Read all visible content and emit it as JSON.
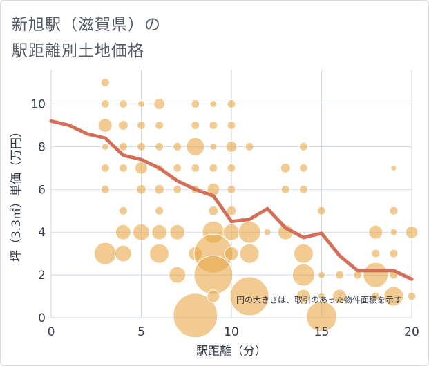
{
  "title_line1": "新旭駅（滋賀県）の",
  "title_line2": "駅距離別土地価格",
  "chart_data": {
    "type": "scatter",
    "xlabel": "駅距離（分）",
    "ylabel": "坪（3.3㎡）単価（万円）",
    "xlim": [
      0,
      20
    ],
    "ylim": [
      0,
      11.6
    ],
    "xticks": [
      0,
      5,
      10,
      15,
      20
    ],
    "yticks": [
      0,
      2,
      4,
      6,
      8,
      10
    ],
    "note": "円の大きさは、取引のあった物件面積を示す",
    "bubble_color": "#e8a94a",
    "line_color": "#d4705a",
    "trend_line": {
      "x": [
        0,
        1,
        2,
        3,
        4,
        5,
        6,
        7,
        8,
        9,
        10,
        11,
        12,
        13,
        14,
        15,
        16,
        17,
        18,
        19,
        20
      ],
      "y": [
        9.2,
        9.0,
        8.6,
        8.4,
        7.6,
        7.4,
        7.0,
        6.4,
        6.0,
        5.7,
        4.5,
        4.6,
        5.1,
        4.2,
        3.75,
        3.95,
        2.9,
        2.2,
        2.2,
        2.2,
        1.8
      ]
    },
    "bubbles": [
      {
        "x": 3,
        "y": 11,
        "s": 6
      },
      {
        "x": 3,
        "y": 10,
        "s": 6
      },
      {
        "x": 3,
        "y": 9,
        "s": 10
      },
      {
        "x": 3,
        "y": 8,
        "s": 5
      },
      {
        "x": 3,
        "y": 7,
        "s": 6
      },
      {
        "x": 3,
        "y": 6,
        "s": 6
      },
      {
        "x": 3,
        "y": 3,
        "s": 16
      },
      {
        "x": 4,
        "y": 10,
        "s": 6
      },
      {
        "x": 4,
        "y": 9,
        "s": 7
      },
      {
        "x": 4,
        "y": 8,
        "s": 6
      },
      {
        "x": 4,
        "y": 7,
        "s": 6
      },
      {
        "x": 4,
        "y": 5,
        "s": 6
      },
      {
        "x": 4,
        "y": 4,
        "s": 11
      },
      {
        "x": 4,
        "y": 3,
        "s": 12
      },
      {
        "x": 5,
        "y": 10,
        "s": 5
      },
      {
        "x": 5,
        "y": 9,
        "s": 6
      },
      {
        "x": 5,
        "y": 8,
        "s": 6
      },
      {
        "x": 5,
        "y": 7,
        "s": 9
      },
      {
        "x": 5,
        "y": 6,
        "s": 7
      },
      {
        "x": 5,
        "y": 4,
        "s": 12
      },
      {
        "x": 6,
        "y": 10,
        "s": 8
      },
      {
        "x": 6,
        "y": 9,
        "s": 6
      },
      {
        "x": 6,
        "y": 8,
        "s": 6
      },
      {
        "x": 6,
        "y": 7,
        "s": 5
      },
      {
        "x": 6,
        "y": 6,
        "s": 7
      },
      {
        "x": 6,
        "y": 5,
        "s": 6
      },
      {
        "x": 6,
        "y": 4,
        "s": 11
      },
      {
        "x": 6,
        "y": 3,
        "s": 14
      },
      {
        "x": 7,
        "y": 8,
        "s": 6
      },
      {
        "x": 7,
        "y": 7,
        "s": 6
      },
      {
        "x": 7,
        "y": 6,
        "s": 6
      },
      {
        "x": 7,
        "y": 4,
        "s": 11
      },
      {
        "x": 7,
        "y": 2,
        "s": 12
      },
      {
        "x": 8,
        "y": 10,
        "s": 6
      },
      {
        "x": 8,
        "y": 9,
        "s": 6
      },
      {
        "x": 8,
        "y": 8,
        "s": 13
      },
      {
        "x": 8,
        "y": 7,
        "s": 6
      },
      {
        "x": 8,
        "y": 6,
        "s": 6
      },
      {
        "x": 8,
        "y": 3,
        "s": 10
      },
      {
        "x": 8,
        "y": 0.1,
        "s": 32
      },
      {
        "x": 9,
        "y": 10,
        "s": 5
      },
      {
        "x": 9,
        "y": 9,
        "s": 6
      },
      {
        "x": 9,
        "y": 8,
        "s": 5
      },
      {
        "x": 9,
        "y": 7,
        "s": 6
      },
      {
        "x": 9,
        "y": 6,
        "s": 9
      },
      {
        "x": 9,
        "y": 5,
        "s": 7
      },
      {
        "x": 9,
        "y": 4,
        "s": 16
      },
      {
        "x": 9,
        "y": 3,
        "s": 28
      },
      {
        "x": 9,
        "y": 2,
        "s": 28
      },
      {
        "x": 9,
        "y": 1,
        "s": 9
      },
      {
        "x": 10,
        "y": 10,
        "s": 6
      },
      {
        "x": 10,
        "y": 9,
        "s": 6
      },
      {
        "x": 10,
        "y": 8,
        "s": 8
      },
      {
        "x": 10,
        "y": 7,
        "s": 6
      },
      {
        "x": 10,
        "y": 6,
        "s": 6
      },
      {
        "x": 10,
        "y": 5,
        "s": 7
      },
      {
        "x": 10,
        "y": 4,
        "s": 12
      },
      {
        "x": 10,
        "y": 3,
        "s": 10
      },
      {
        "x": 11,
        "y": 8,
        "s": 6
      },
      {
        "x": 11,
        "y": 4,
        "s": 16
      },
      {
        "x": 11,
        "y": 3,
        "s": 14
      },
      {
        "x": 11,
        "y": 1,
        "s": 28
      },
      {
        "x": 12,
        "y": 4,
        "s": 5
      },
      {
        "x": 13,
        "y": 7,
        "s": 7
      },
      {
        "x": 13,
        "y": 6,
        "s": 6
      },
      {
        "x": 13,
        "y": 4,
        "s": 11
      },
      {
        "x": 14,
        "y": 8,
        "s": 6
      },
      {
        "x": 14,
        "y": 7,
        "s": 6
      },
      {
        "x": 14,
        "y": 6,
        "s": 6
      },
      {
        "x": 14,
        "y": 3,
        "s": 14
      },
      {
        "x": 14,
        "y": 2,
        "s": 16
      },
      {
        "x": 14,
        "y": 1,
        "s": 10
      },
      {
        "x": 15,
        "y": 5,
        "s": 6
      },
      {
        "x": 15,
        "y": 2,
        "s": 5
      },
      {
        "x": 15,
        "y": 1,
        "s": 5
      },
      {
        "x": 15,
        "y": 0.05,
        "s": 22
      },
      {
        "x": 16,
        "y": 2,
        "s": 6
      },
      {
        "x": 16,
        "y": 1,
        "s": 10
      },
      {
        "x": 17,
        "y": 2,
        "s": 6
      },
      {
        "x": 18,
        "y": 4,
        "s": 10
      },
      {
        "x": 18,
        "y": 3,
        "s": 6
      },
      {
        "x": 18,
        "y": 2,
        "s": 18
      },
      {
        "x": 18,
        "y": 1,
        "s": 6
      },
      {
        "x": 19,
        "y": 7,
        "s": 4
      },
      {
        "x": 19,
        "y": 5,
        "s": 6
      },
      {
        "x": 19,
        "y": 4,
        "s": 5
      },
      {
        "x": 19,
        "y": 3,
        "s": 6
      },
      {
        "x": 19,
        "y": 2,
        "s": 6
      },
      {
        "x": 19,
        "y": 1,
        "s": 14
      },
      {
        "x": 20,
        "y": 4,
        "s": 9
      },
      {
        "x": 20,
        "y": 1,
        "s": 6
      }
    ]
  }
}
